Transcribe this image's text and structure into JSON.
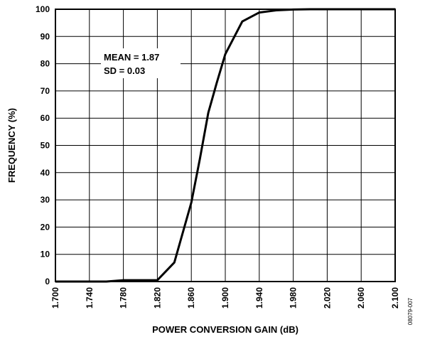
{
  "chart_data": {
    "type": "line",
    "xlabel": "POWER CONVERSION GAIN (dB)",
    "ylabel": "FREQUENCY (%)",
    "xlim": [
      1.7,
      2.1
    ],
    "ylim": [
      0,
      100
    ],
    "x_ticks": [
      "1.700",
      "1.740",
      "1.780",
      "1.820",
      "1.860",
      "1.900",
      "1.940",
      "1.980",
      "2.020",
      "2.060",
      "2.100"
    ],
    "y_ticks": [
      "0",
      "10",
      "20",
      "30",
      "40",
      "50",
      "60",
      "70",
      "80",
      "90",
      "100"
    ],
    "grid": true,
    "annotations": [
      "MEAN = 1.87",
      "SD = 0.03"
    ],
    "figure_code": "08079-007",
    "series": [
      {
        "color": "#000000",
        "x": [
          1.7,
          1.72,
          1.74,
          1.76,
          1.78,
          1.8,
          1.82,
          1.84,
          1.86,
          1.87,
          1.88,
          1.89,
          1.9,
          1.92,
          1.94,
          1.96,
          1.98,
          2.0,
          2.02,
          2.04,
          2.06,
          2.08,
          2.1
        ],
        "y": [
          0,
          0,
          0,
          0,
          0.5,
          0.5,
          0.5,
          7,
          29,
          45,
          62,
          73,
          83.5,
          95.5,
          98.8,
          99.6,
          99.9,
          100,
          100,
          100,
          100,
          100,
          100
        ]
      }
    ]
  }
}
